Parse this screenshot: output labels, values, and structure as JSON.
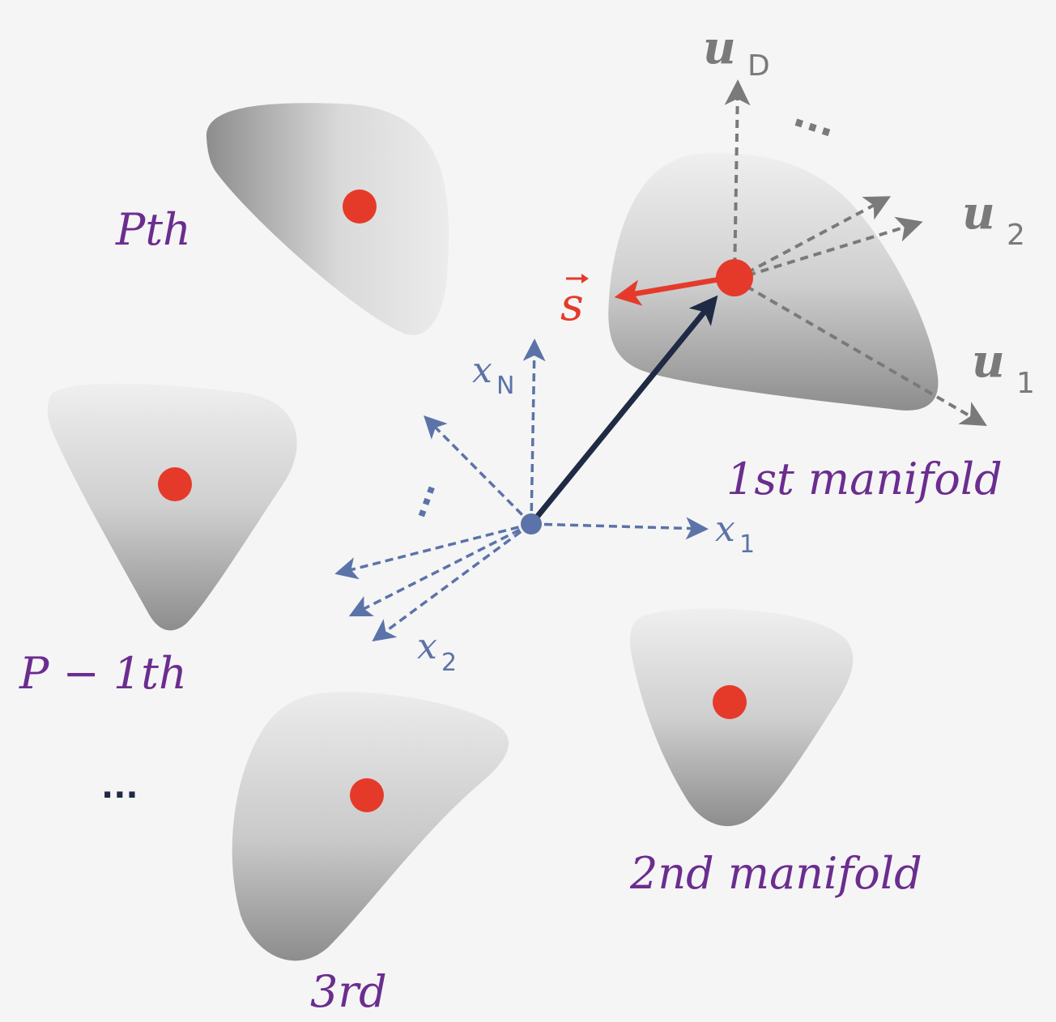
{
  "labels": {
    "m1": "1st manifold",
    "m2": "2nd manifold",
    "m3": "3rd",
    "mp1": "P − 1th",
    "mp": "Pth",
    "dots_left": "...",
    "dots_top": "...",
    "dots_axes": "...",
    "u1_main": "u",
    "u1_sub": "1",
    "u2_main": "u",
    "u2_sub": "2",
    "ud_main": "u",
    "ud_sub": "D",
    "x1_main": "x",
    "x1_sub": "1",
    "x2_main": "x",
    "x2_sub": "2",
    "xn_main": "x",
    "xn_sub": "N",
    "s": "s"
  },
  "colors": {
    "background": "#f5f5f5",
    "manifold_light": "#ececec",
    "manifold_dark": "#8a8a8a",
    "center_dot": "#e53a2a",
    "label_purple": "#6b2d8f",
    "axis_blue": "#5b73a8",
    "axis_gray": "#7a7a7a",
    "main_vector": "#1f2a44",
    "s_vector": "#e53a2a"
  }
}
